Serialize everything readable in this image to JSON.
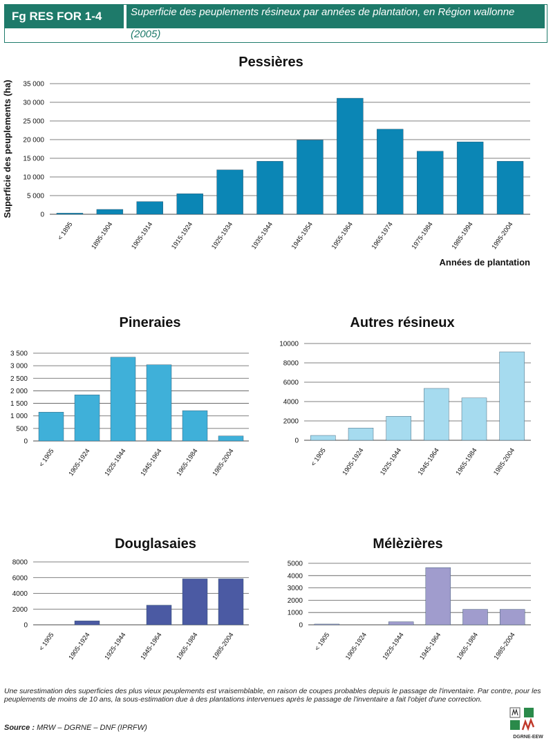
{
  "header": {
    "tag": "Fg RES FOR 1-4",
    "title_line1": "Superficie des peuplements résineux par années de plantation, en Région wallonne",
    "title_line2": "(2005)"
  },
  "chart_data": [
    {
      "id": "pessieres",
      "type": "bar",
      "title": "Pessières",
      "ylabel": "Superficie des peuplements (ha)",
      "xlabel": "Années de plantation",
      "color": "#0b86b5",
      "ylim": [
        0,
        35000
      ],
      "yticks": [
        "0",
        "5 000",
        "10 000",
        "15 000",
        "20 000",
        "25 000",
        "30 000",
        "35 000"
      ],
      "categories": [
        "< 1895",
        "1895-1904",
        "1905-1914",
        "1915-1924",
        "1925-1934",
        "1935-1944",
        "1945-1954",
        "1955-1964",
        "1965-1974",
        "1975-1984",
        "1985-1994",
        "1995-2004"
      ],
      "values": [
        300,
        1300,
        3400,
        5500,
        11900,
        14200,
        19900,
        31100,
        22800,
        16900,
        19400,
        14200
      ]
    },
    {
      "id": "pineraies",
      "type": "bar",
      "title": "Pineraies",
      "color": "#3fb0d9",
      "ylim": [
        0,
        3500
      ],
      "yticks": [
        "0",
        "500",
        "1 000",
        "1 500",
        "2 000",
        "2 500",
        "3 000",
        "3 500"
      ],
      "categories": [
        "< 1905",
        "1905-1924",
        "1925-1944",
        "1945-1964",
        "1965-1984",
        "1985-2004"
      ],
      "values": [
        1150,
        1840,
        3340,
        3040,
        1210,
        200
      ]
    },
    {
      "id": "autres",
      "type": "bar",
      "title": "Autres résineux",
      "color": "#a6dbef",
      "ylim": [
        0,
        10000
      ],
      "yticks": [
        "0",
        "2000",
        "4000",
        "6000",
        "8000",
        "10000"
      ],
      "categories": [
        "< 1905",
        "1905-1924",
        "1925-1944",
        "1945-1964",
        "1965-1984",
        "1985-2004"
      ],
      "values": [
        500,
        1270,
        2480,
        5360,
        4380,
        9140
      ]
    },
    {
      "id": "douglasaies",
      "type": "bar",
      "title": "Douglasaies",
      "color": "#4b5aa3",
      "ylim": [
        0,
        8000
      ],
      "yticks": [
        "0",
        "2000",
        "4000",
        "6000",
        "8000"
      ],
      "categories": [
        "< 1905",
        "1905-1924",
        "1925-1944",
        "1945-1964",
        "1965-1984",
        "1985-2004"
      ],
      "values": [
        0,
        500,
        0,
        2500,
        5850,
        5850
      ]
    },
    {
      "id": "melezieres",
      "type": "bar",
      "title": "Mélèzières",
      "color": "#a09ccd",
      "ylim": [
        0,
        5000
      ],
      "yticks": [
        "0",
        "1000",
        "2000",
        "3000",
        "4000",
        "5000"
      ],
      "categories": [
        "< 1905",
        "1905-1924",
        "1925-1944",
        "1945-1964",
        "1965-1984",
        "1985-2004"
      ],
      "values": [
        60,
        0,
        250,
        4650,
        1260,
        1260
      ]
    }
  ],
  "footnote": "Une surestimation des superficies des plus vieux peuplements est vraisemblable, en raison de coupes probables depuis le passage de l'inventaire. Par contre, pour les peuplements de moins de 10 ans, la sous-estimation due à des plantations intervenues après le passage de l'inventaire a fait l'objet d'une correction.",
  "source_label": "Source :",
  "source_text": "MRW – DGRNE – DNF (IPRFW)",
  "logo_text": "DGRNE-EEW",
  "colors": {
    "header_bg": "#1e7a6a",
    "logo_green": "#2a8a4a",
    "logo_red": "#c0392b"
  }
}
